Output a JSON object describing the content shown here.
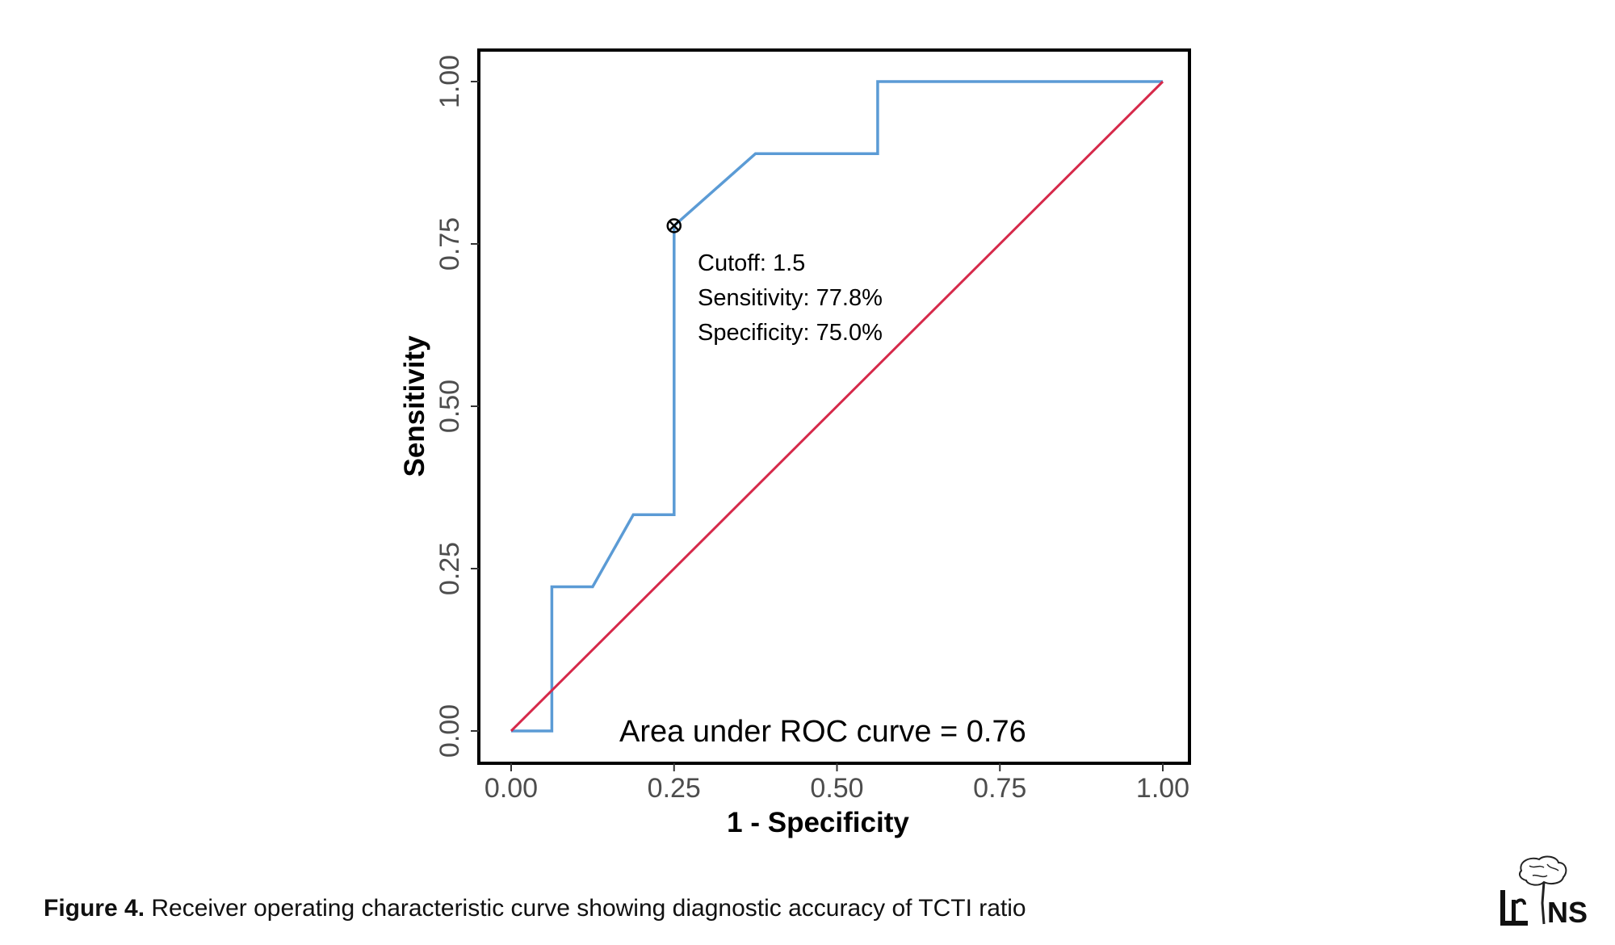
{
  "chart_data": {
    "type": "line",
    "xlabel": "1 - Specificity",
    "ylabel": "Sensitivity",
    "xlim": [
      0,
      1
    ],
    "ylim": [
      0,
      1
    ],
    "x_ticks": [
      "0.00",
      "0.25",
      "0.50",
      "0.75",
      "1.00"
    ],
    "y_ticks": [
      "0.00",
      "0.25",
      "0.50",
      "0.75",
      "1.00"
    ],
    "grid": false,
    "legend": "none",
    "series": [
      {
        "color": "#5b9bd5",
        "step": true,
        "x": [
          0,
          0.0625,
          0.0625,
          0.125,
          0.1875,
          0.25,
          0.25,
          0.375,
          0.5625,
          0.5625,
          1.0
        ],
        "y": [
          0,
          0,
          0.222,
          0.222,
          0.333,
          0.333,
          0.778,
          0.889,
          0.889,
          1.0,
          1.0
        ]
      },
      {
        "color": "#d6294a",
        "x": [
          0,
          1
        ],
        "y": [
          0,
          1
        ]
      }
    ],
    "cutoff_point": {
      "x": 0.25,
      "y": 0.778
    },
    "annotations": {
      "cutoff": "Cutoff: 1.5",
      "sensitivity": "Sensitivity: 77.8%",
      "specificity": "Specificity: 75.0%",
      "auc": "Area under ROC curve =  0.76"
    }
  },
  "caption": {
    "label": "Figure 4.",
    "text": " Receiver operating characteristic curve showing diagnostic accuracy of TCTI ratio"
  },
  "logo": {
    "text": "NS",
    "icon": "brain-logo-icon"
  }
}
